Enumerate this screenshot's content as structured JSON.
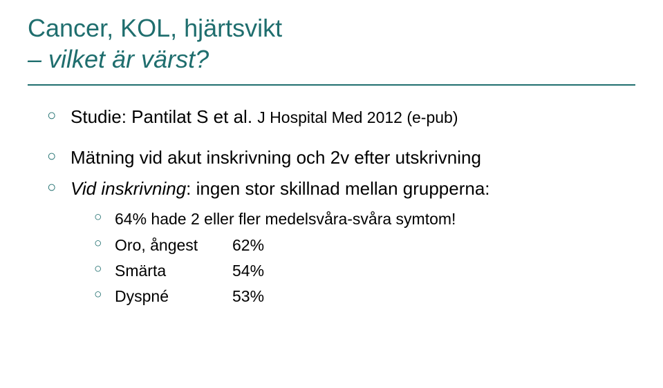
{
  "title": {
    "line1": "Cancer, KOL, hjärtsvikt",
    "line2": "– vilket är värst?",
    "color": "#1f6e6e",
    "fontsize": 36
  },
  "rule_color": "#1f6e6e",
  "bullets": {
    "study": {
      "prefix": "Studie: Pantilat S et al. ",
      "citation": "J Hospital Med 2012 (e-pub)"
    },
    "measurement": "Mätning vid akut inskrivning och 2v efter utskrivning",
    "at_admission": {
      "label": "Vid inskrivning",
      "rest": ": ingen stor skillnad mellan grupperna:"
    },
    "stat64": "64% hade 2 eller fler medelsvåra-svåra symtom!",
    "stats": [
      {
        "label": "Oro, ångest",
        "value": "62%"
      },
      {
        "label": "Smärta",
        "value": "54%"
      },
      {
        "label": "Dyspné",
        "value": "53%"
      }
    ]
  },
  "colors": {
    "bullet": "#1f6e6e",
    "text": "#000000",
    "background": "#ffffff"
  },
  "fontsizes": {
    "body": 26,
    "citation": 23,
    "sub": 23
  }
}
